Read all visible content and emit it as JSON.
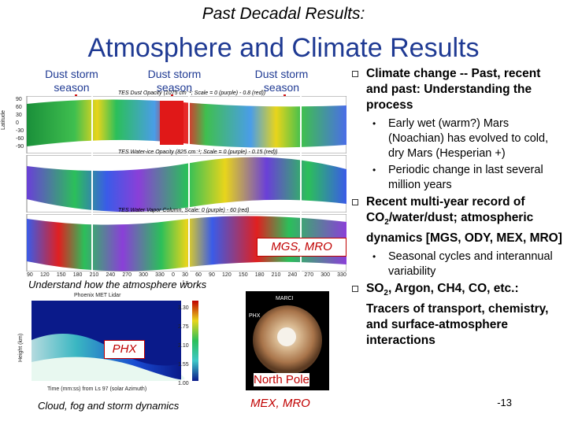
{
  "header": {
    "eyebrow": "Past Decadal Results:",
    "title": "Atmosphere and Climate Results"
  },
  "seasons": {
    "label_line1": "Dust storm",
    "label_line2": "season"
  },
  "plots": {
    "panel1_title": "TES Dust Opacity (1075 cm⁻¹; Scale = 0 (purple) - 0.8 (red))",
    "panel2_title": "TES Water-ice Opacity (825 cm⁻¹; Scale = 0 (purple) - 0.15 (red))",
    "panel3_title": "TES Water Vapor Column, Scale: 0 (purple) - 60 (red)",
    "ylabel": "Latitude",
    "xaxis_label": "Ls",
    "x_ticks": [
      "90",
      "120",
      "150",
      "180",
      "210",
      "240",
      "270",
      "300",
      "330",
      "0",
      "30",
      "60",
      "90",
      "120",
      "150",
      "180",
      "210",
      "240",
      "270",
      "300",
      "330"
    ],
    "y_ticks": [
      "90",
      "60",
      "30",
      "0",
      "-30",
      "-60",
      "-90"
    ],
    "mission_label": "MGS, MRO"
  },
  "lidar": {
    "heading": "Understand how the atmosphere works",
    "title": "Phoenix MET Lidar",
    "ylabel": "Height (km)",
    "xlabel": "Time (mm:ss) from Ls 97 (solar Azimuth)",
    "colorbar_ticks": [
      "3.30",
      "2.75",
      "2.10",
      "1.55",
      "1.00"
    ],
    "label": "PHX",
    "caption": "Cloud, fog and storm dynamics"
  },
  "mars_image": {
    "label_marci": "MARCI",
    "label_phx": "PHX",
    "overlay": "North Pole",
    "caption": "MEX, MRO"
  },
  "bullets": [
    {
      "text": "Climate change -- Past, recent and past: Understanding the process",
      "sub": [
        "Early wet (warm?) Mars (Noachian) has evolved to cold, dry Mars (Hesperian +)",
        "Periodic change in last several million years"
      ]
    },
    {
      "text_pre": "Recent multi-year record of CO",
      "text_sub": "2",
      "text_post": "/water/dust; atmospheric dynamics [MGS, ODY, MEX, MRO]",
      "sub": [
        "Seasonal cycles and interannual variability"
      ]
    },
    {
      "text_pre": "SO",
      "text_sub": "2",
      "text_post": ", Argon, CH4, CO, etc.: Tracers of transport, chemistry, and surface-atmosphere interactions",
      "sub": []
    }
  ],
  "footer": {
    "page_number": "-13"
  },
  "colors": {
    "title_blue": "#1f3a93",
    "accent_red": "#c00000"
  }
}
